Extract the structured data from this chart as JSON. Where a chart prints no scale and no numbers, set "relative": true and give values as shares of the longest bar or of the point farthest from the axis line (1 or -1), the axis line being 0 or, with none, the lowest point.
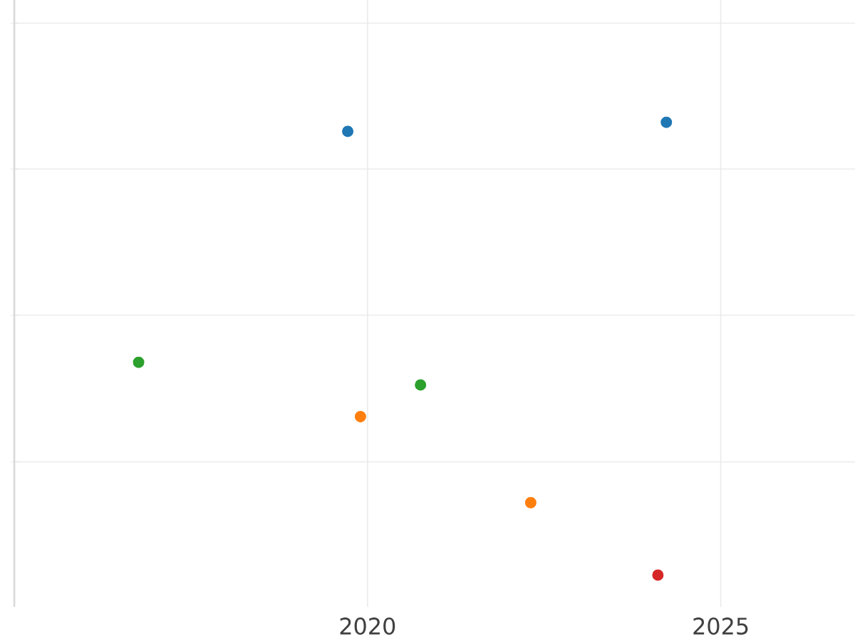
{
  "chart_data": {
    "type": "scatter",
    "relative": true,
    "series": [
      {
        "color": "#1f77b4",
        "x": [
          2019.72,
          2024.23
        ],
        "values": [
          0.98,
          1
        ]
      },
      {
        "color": "#2ca02c",
        "x": [
          2016.76,
          2020.75
        ],
        "values": [
          0.47,
          0.42
        ]
      },
      {
        "color": "#ff7f0e",
        "x": [
          2019.9,
          2022.31
        ],
        "values": [
          0.35,
          0.16
        ]
      },
      {
        "color": "#d62728",
        "x": [
          2024.11
        ],
        "values": [
          0
        ]
      }
    ],
    "xlim": [
      2015,
      2026.9
    ],
    "xticks": [
      2020,
      2025
    ],
    "grid": true,
    "marker": "circle"
  }
}
